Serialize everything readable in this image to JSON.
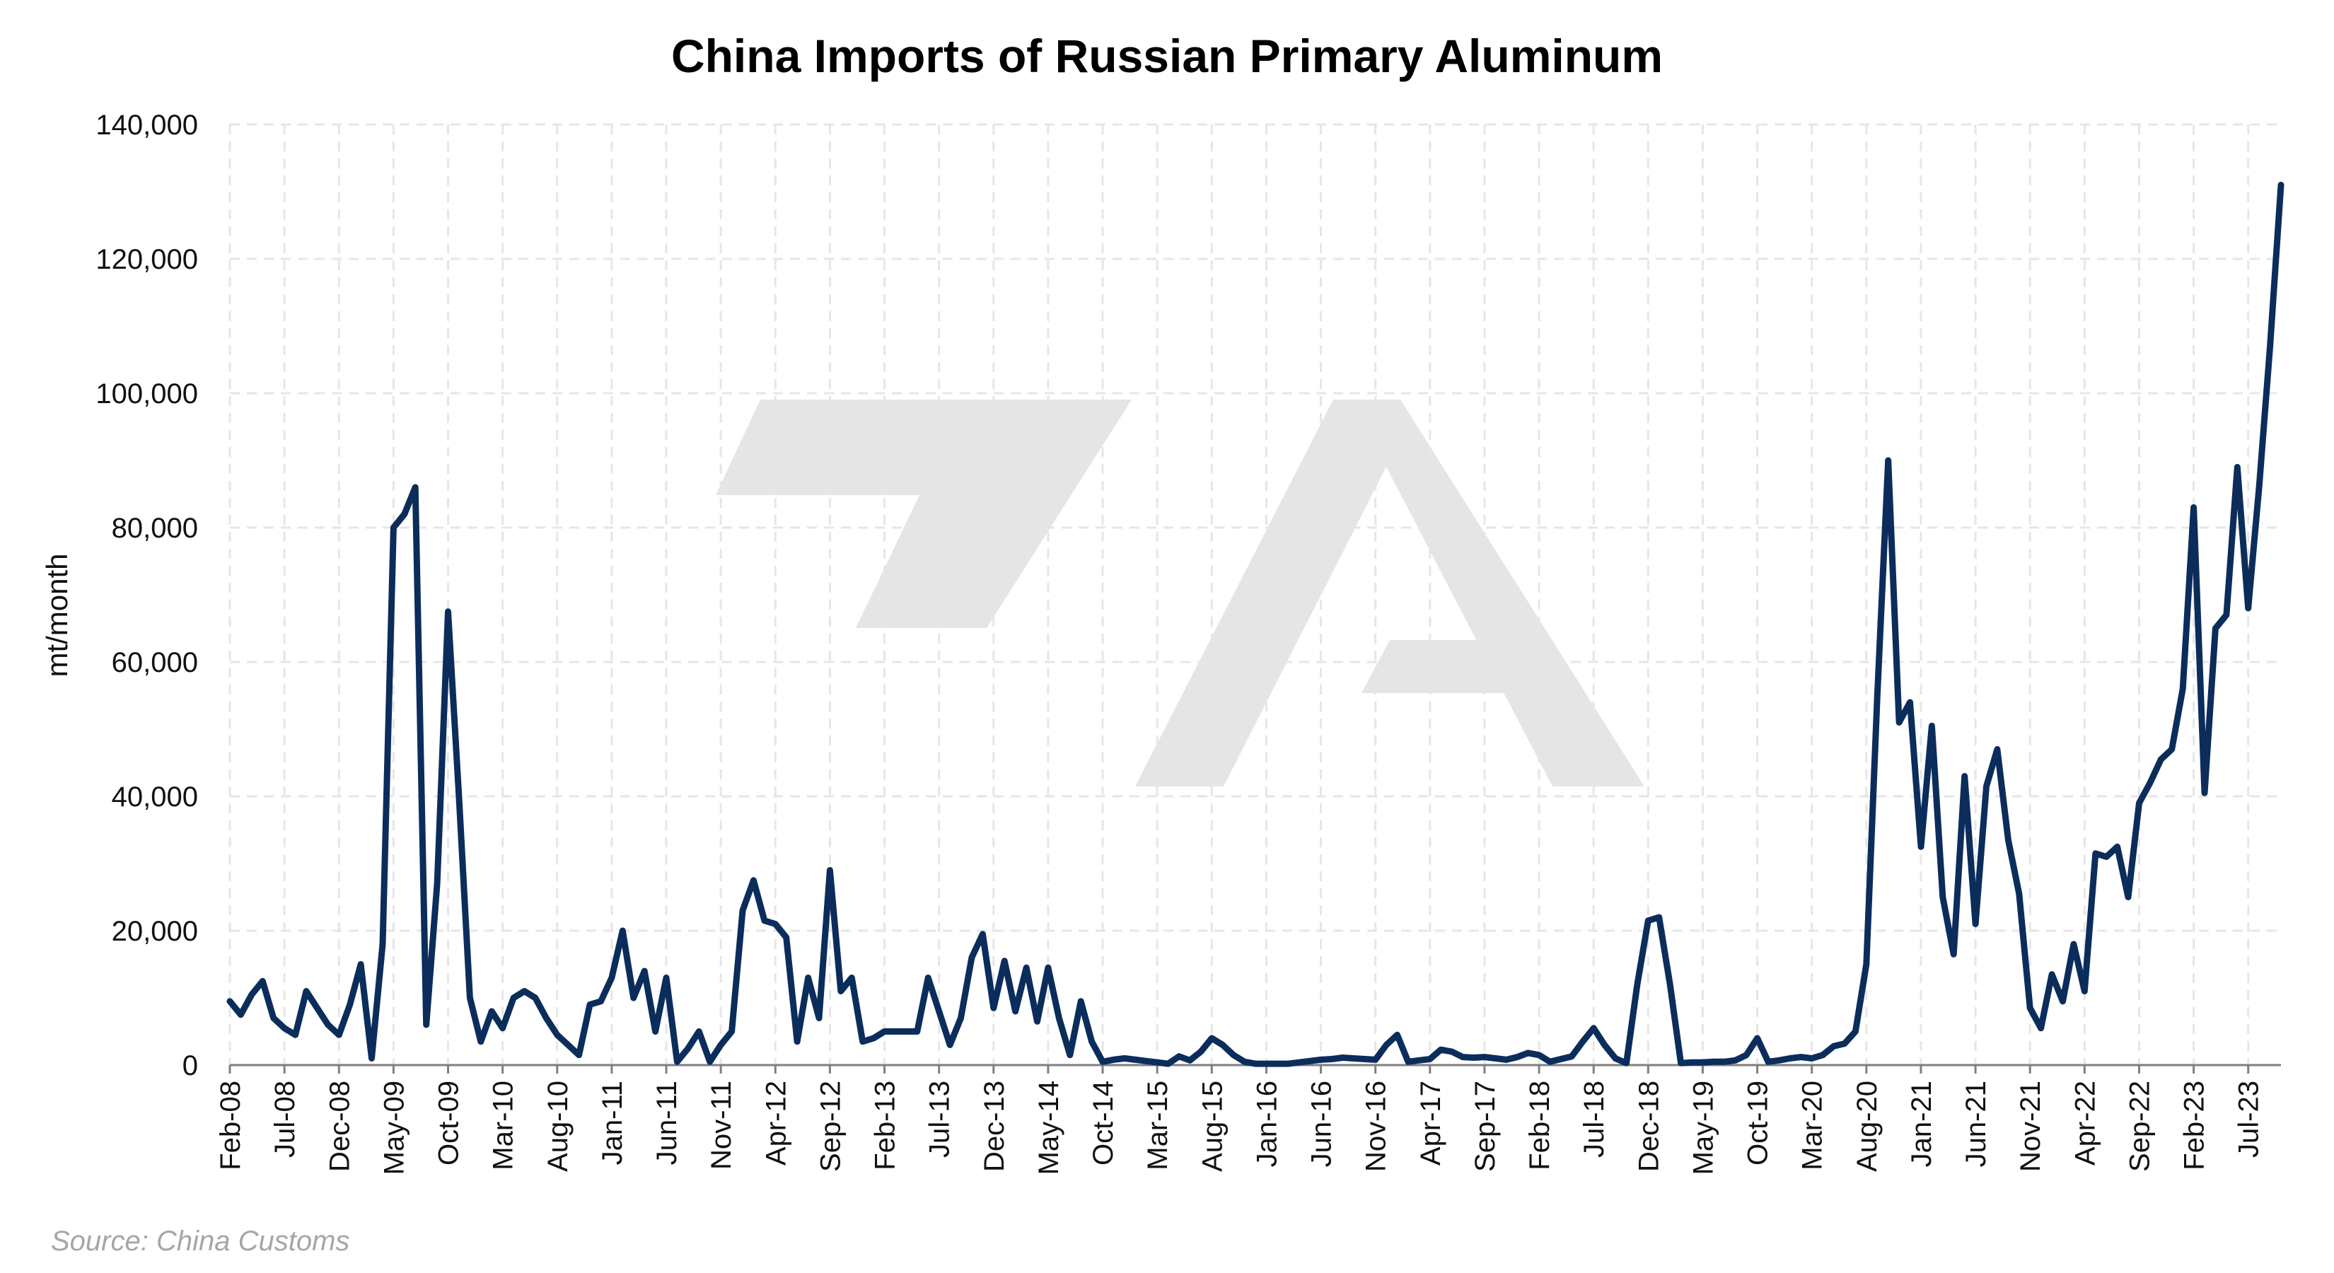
{
  "colors": {
    "series": "#0b2d5b",
    "grid": "#e6e6e6",
    "source_text": "#a6a6a6",
    "watermark": "#e5e5e5"
  },
  "watermark_logo": "7A",
  "chart_data": {
    "type": "line",
    "title": "China Imports of Russian Primary Aluminum",
    "xlabel": "",
    "ylabel": "mt/month",
    "ylim": [
      0,
      140000
    ],
    "y_ticks": [
      "0",
      "20,000",
      "40,000",
      "60,000",
      "80,000",
      "100,000",
      "120,000",
      "140,000"
    ],
    "y_tick_values": [
      0,
      20000,
      40000,
      60000,
      80000,
      100000,
      120000,
      140000
    ],
    "x_start": "Feb-08",
    "x_tick_labels": [
      "Feb-08",
      "Jul-08",
      "Dec-08",
      "May-09",
      "Oct-09",
      "Mar-10",
      "Aug-10",
      "Jan-11",
      "Jun-11",
      "Nov-11",
      "Apr-12",
      "Sep-12",
      "Feb-13",
      "Jul-13",
      "Dec-13",
      "May-14",
      "Oct-14",
      "Mar-15",
      "Aug-15",
      "Jan-16",
      "Jun-16",
      "Nov-16",
      "Apr-17",
      "Sep-17",
      "Feb-18",
      "Jul-18",
      "Dec-18",
      "May-19",
      "Oct-19",
      "Mar-20",
      "Aug-20",
      "Jan-21",
      "Jun-21",
      "Nov-21",
      "Apr-22",
      "Sep-22",
      "Feb-23",
      "Jul-23"
    ],
    "grid": true,
    "legend": "none",
    "source": "Source: China Customs",
    "series": [
      {
        "values": [
          9500,
          7500,
          10500,
          12500,
          7000,
          5500,
          4500,
          11000,
          8500,
          6000,
          4500,
          9000,
          15000,
          1000,
          18000,
          80000,
          82000,
          86000,
          6000,
          27000,
          67500,
          40000,
          10000,
          3500,
          8000,
          5500,
          10000,
          11000,
          10000,
          7000,
          4500,
          3000,
          1500,
          9000,
          9500,
          13000,
          20000,
          10000,
          14000,
          5000,
          13000,
          500,
          2500,
          5000,
          500,
          3000,
          5000,
          23000,
          27500,
          21500,
          21000,
          19000,
          3500,
          13000,
          7000,
          29000,
          11000,
          13000,
          3500,
          4000,
          5000,
          5000,
          5000,
          5000,
          13000,
          8000,
          3000,
          7000,
          16000,
          19500,
          8500,
          15500,
          8000,
          14500,
          6500,
          14500,
          7000,
          1500,
          9500,
          3500,
          500,
          800,
          1000,
          800,
          600,
          400,
          200,
          1300,
          700,
          2000,
          4000,
          3000,
          1500,
          500,
          200,
          200,
          200,
          200,
          400,
          600,
          800,
          900,
          1100,
          1000,
          900,
          800,
          3000,
          4500,
          500,
          700,
          900,
          2300,
          2000,
          1200,
          1100,
          1200,
          1000,
          800,
          1200,
          1800,
          1500,
          500,
          900,
          1300,
          3500,
          5500,
          3000,
          1000,
          300,
          12000,
          21500,
          22000,
          12000,
          300,
          400,
          400,
          500,
          500,
          700,
          1500,
          4000,
          500,
          700,
          1000,
          1200,
          1000,
          1500,
          2800,
          3200,
          5000,
          15000,
          55000,
          90000,
          51000,
          54000,
          32500,
          50500,
          25000,
          16500,
          43000,
          21000,
          41500,
          47000,
          33500,
          25500,
          8500,
          5500,
          13500,
          9500,
          18000,
          11000,
          31500,
          31000,
          32500,
          25000,
          39000,
          42000,
          45500,
          47000,
          56000,
          83000,
          40500,
          65000,
          67000,
          89000,
          68000,
          86000,
          107000,
          131000
        ]
      }
    ]
  }
}
